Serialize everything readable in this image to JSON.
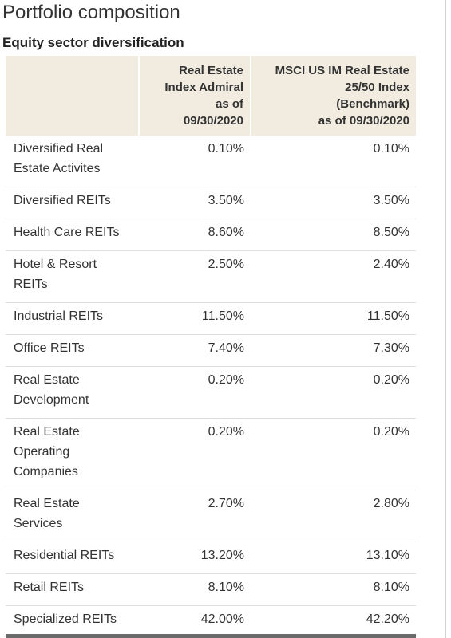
{
  "page": {
    "title": "Portfolio composition",
    "section_title": "Equity sector diversification"
  },
  "table": {
    "headers": {
      "sector": "",
      "fund": [
        "Real Estate",
        "Index Admiral",
        "as of",
        "09/30/2020"
      ],
      "benchmark": [
        "MSCI US IM Real Estate",
        "25/50 Index",
        "(Benchmark)",
        "as of 09/30/2020"
      ]
    },
    "rows": [
      {
        "sector": [
          "Diversified Real",
          "Estate Activites"
        ],
        "fund": "0.10%",
        "benchmark": "0.10%"
      },
      {
        "sector": [
          "Diversified REITs"
        ],
        "fund": "3.50%",
        "benchmark": "3.50%"
      },
      {
        "sector": [
          "Health Care REITs"
        ],
        "fund": "8.60%",
        "benchmark": "8.50%"
      },
      {
        "sector": [
          "Hotel & Resort",
          "REITs"
        ],
        "fund": "2.50%",
        "benchmark": "2.40%"
      },
      {
        "sector": [
          "Industrial REITs"
        ],
        "fund": "11.50%",
        "benchmark": "11.50%"
      },
      {
        "sector": [
          "Office REITs"
        ],
        "fund": "7.40%",
        "benchmark": "7.30%"
      },
      {
        "sector": [
          "Real Estate",
          "Development"
        ],
        "fund": "0.20%",
        "benchmark": "0.20%"
      },
      {
        "sector": [
          "Real Estate",
          "Operating",
          "Companies"
        ],
        "fund": "0.20%",
        "benchmark": "0.20%"
      },
      {
        "sector": [
          "Real Estate",
          "Services"
        ],
        "fund": "2.70%",
        "benchmark": "2.80%"
      },
      {
        "sector": [
          "Residential REITs"
        ],
        "fund": "13.20%",
        "benchmark": "13.10%"
      },
      {
        "sector": [
          "Retail REITs"
        ],
        "fund": "8.10%",
        "benchmark": "8.10%"
      },
      {
        "sector": [
          "Specialized REITs"
        ],
        "fund": "42.00%",
        "benchmark": "42.20%"
      }
    ]
  }
}
